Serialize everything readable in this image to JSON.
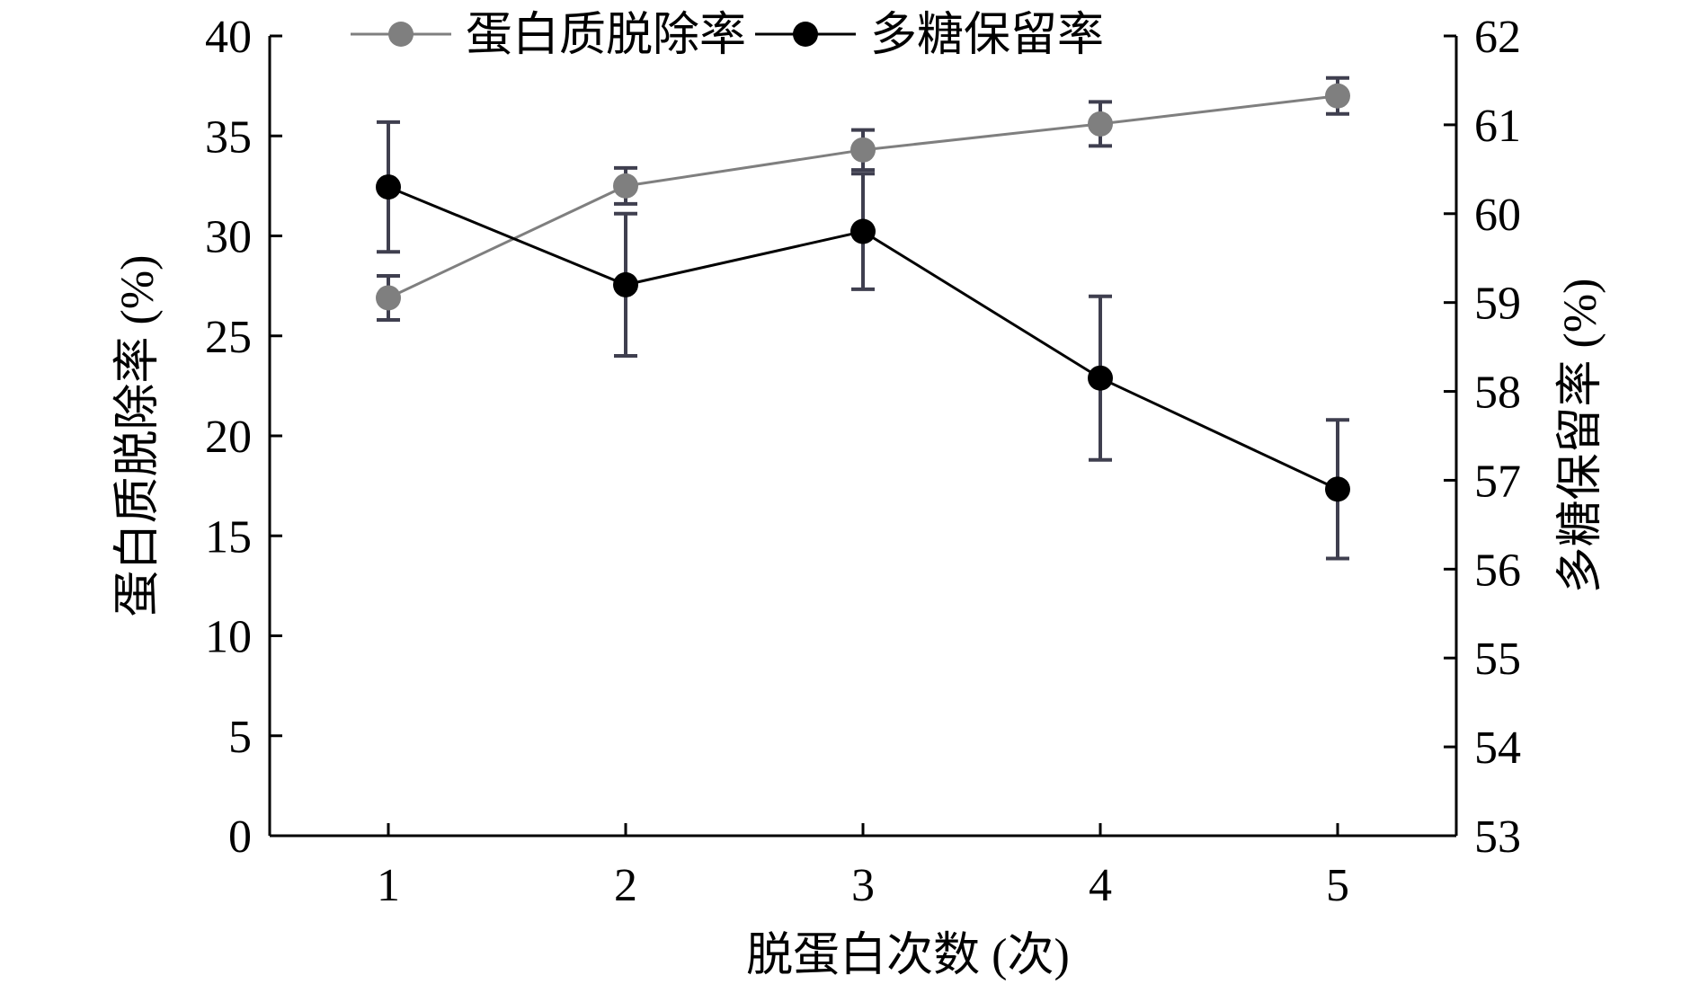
{
  "chart_data": {
    "type": "line",
    "title": "",
    "xlabel": "脱蛋白次数 (次)",
    "ylabel_left": "蛋白质脱除率 (%)",
    "ylabel_right": "多糖保留率 (%)",
    "x": [
      1,
      2,
      3,
      4,
      5
    ],
    "x_ticks": [
      "1",
      "2",
      "3",
      "4",
      "5"
    ],
    "ylim_left": [
      0,
      40
    ],
    "yticks_left": [
      "0",
      "5",
      "10",
      "15",
      "20",
      "25",
      "30",
      "35",
      "40"
    ],
    "ylim_right": [
      53,
      62
    ],
    "yticks_right": [
      "53",
      "54",
      "55",
      "56",
      "57",
      "58",
      "59",
      "60",
      "61",
      "62"
    ],
    "grid": false,
    "legend_position": "top",
    "series": [
      {
        "name": "蛋白质脱除率",
        "axis": "left",
        "color": "#7f7f7f",
        "values": [
          26.9,
          32.5,
          34.3,
          35.6,
          37.0
        ],
        "error": [
          1.1,
          0.9,
          1.0,
          1.1,
          0.9
        ]
      },
      {
        "name": "多糖保留率",
        "axis": "right",
        "color": "#000000",
        "values": [
          60.3,
          59.2,
          59.8,
          58.15,
          56.9
        ],
        "error": [
          0.73,
          0.8,
          0.65,
          0.92,
          0.78
        ]
      }
    ],
    "errorbar_color": "#3f3f4f"
  }
}
